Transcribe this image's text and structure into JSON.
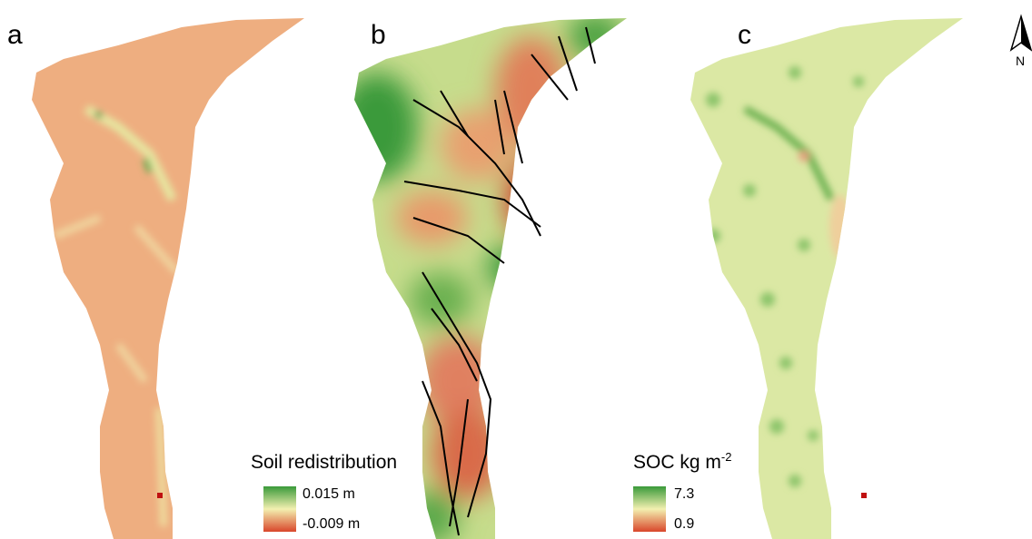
{
  "panels": [
    {
      "label": "a"
    },
    {
      "label": "b"
    },
    {
      "label": "c"
    }
  ],
  "legends": [
    {
      "title": "Soil redistribution",
      "high": "0.015 m",
      "low": "-0.009 m"
    },
    {
      "title": {
        "text": "SOC kg m",
        "superscript": "-2"
      },
      "high": "7.3",
      "low": "0.9"
    }
  ],
  "north_arrow": {
    "label": "N"
  }
}
